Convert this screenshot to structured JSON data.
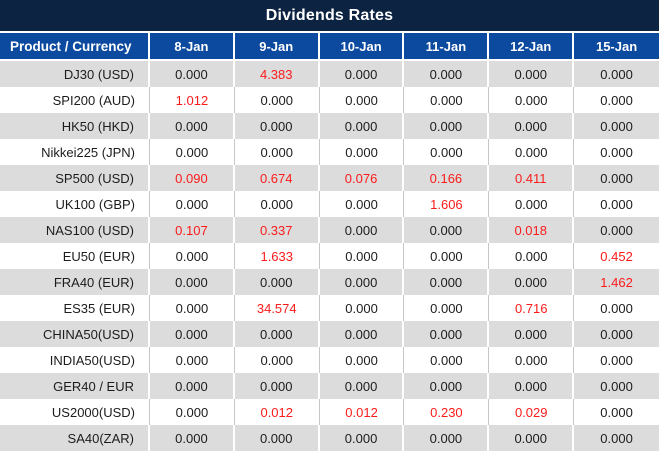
{
  "title": "Dividends Rates",
  "colors": {
    "title_bar_bg": "#0d2342",
    "header_bg": "#0c4a9f",
    "alt_row_bg": "#dcdcdc",
    "row_bg": "#ffffff",
    "value_text": "#1c1c1c",
    "highlight_value_text": "#fb1b1b",
    "header_text": "#ffffff"
  },
  "chart_data": {
    "type": "table",
    "title": "Dividends Rates",
    "columns": [
      "Product / Currency",
      "8-Jan",
      "9-Jan",
      "10-Jan",
      "11-Jan",
      "12-Jan",
      "15-Jan"
    ],
    "rows": [
      {
        "product": "DJ30 (USD)",
        "values": [
          "0.000",
          "4.383",
          "0.000",
          "0.000",
          "0.000",
          "0.000"
        ],
        "red_indices": [
          1
        ]
      },
      {
        "product": "SPI200 (AUD)",
        "values": [
          "1.012",
          "0.000",
          "0.000",
          "0.000",
          "0.000",
          "0.000"
        ],
        "red_indices": [
          0
        ]
      },
      {
        "product": "HK50 (HKD)",
        "values": [
          "0.000",
          "0.000",
          "0.000",
          "0.000",
          "0.000",
          "0.000"
        ],
        "red_indices": []
      },
      {
        "product": "Nikkei225 (JPN)",
        "values": [
          "0.000",
          "0.000",
          "0.000",
          "0.000",
          "0.000",
          "0.000"
        ],
        "red_indices": []
      },
      {
        "product": "SP500 (USD)",
        "values": [
          "0.090",
          "0.674",
          "0.076",
          "0.166",
          "0.411",
          "0.000"
        ],
        "red_indices": [
          0,
          1,
          2,
          3,
          4
        ]
      },
      {
        "product": "UK100 (GBP)",
        "values": [
          "0.000",
          "0.000",
          "0.000",
          "1.606",
          "0.000",
          "0.000"
        ],
        "red_indices": [
          3
        ]
      },
      {
        "product": "NAS100 (USD)",
        "values": [
          "0.107",
          "0.337",
          "0.000",
          "0.000",
          "0.018",
          "0.000"
        ],
        "red_indices": [
          0,
          1,
          4
        ]
      },
      {
        "product": "EU50 (EUR)",
        "values": [
          "0.000",
          "1.633",
          "0.000",
          "0.000",
          "0.000",
          "0.452"
        ],
        "red_indices": [
          1,
          5
        ]
      },
      {
        "product": "FRA40 (EUR)",
        "values": [
          "0.000",
          "0.000",
          "0.000",
          "0.000",
          "0.000",
          "1.462"
        ],
        "red_indices": [
          5
        ]
      },
      {
        "product": "ES35 (EUR)",
        "values": [
          "0.000",
          "34.574",
          "0.000",
          "0.000",
          "0.716",
          "0.000"
        ],
        "red_indices": [
          1,
          4
        ]
      },
      {
        "product": "CHINA50(USD)",
        "values": [
          "0.000",
          "0.000",
          "0.000",
          "0.000",
          "0.000",
          "0.000"
        ],
        "red_indices": []
      },
      {
        "product": "INDIA50(USD)",
        "values": [
          "0.000",
          "0.000",
          "0.000",
          "0.000",
          "0.000",
          "0.000"
        ],
        "red_indices": []
      },
      {
        "product": "GER40 / EUR",
        "values": [
          "0.000",
          "0.000",
          "0.000",
          "0.000",
          "0.000",
          "0.000"
        ],
        "red_indices": []
      },
      {
        "product": "US2000(USD)",
        "values": [
          "0.000",
          "0.012",
          "0.012",
          "0.230",
          "0.029",
          "0.000"
        ],
        "red_indices": [
          1,
          2,
          3,
          4
        ]
      },
      {
        "product": "SA40(ZAR)",
        "values": [
          "0.000",
          "0.000",
          "0.000",
          "0.000",
          "0.000",
          "0.000"
        ],
        "red_indices": []
      }
    ]
  }
}
